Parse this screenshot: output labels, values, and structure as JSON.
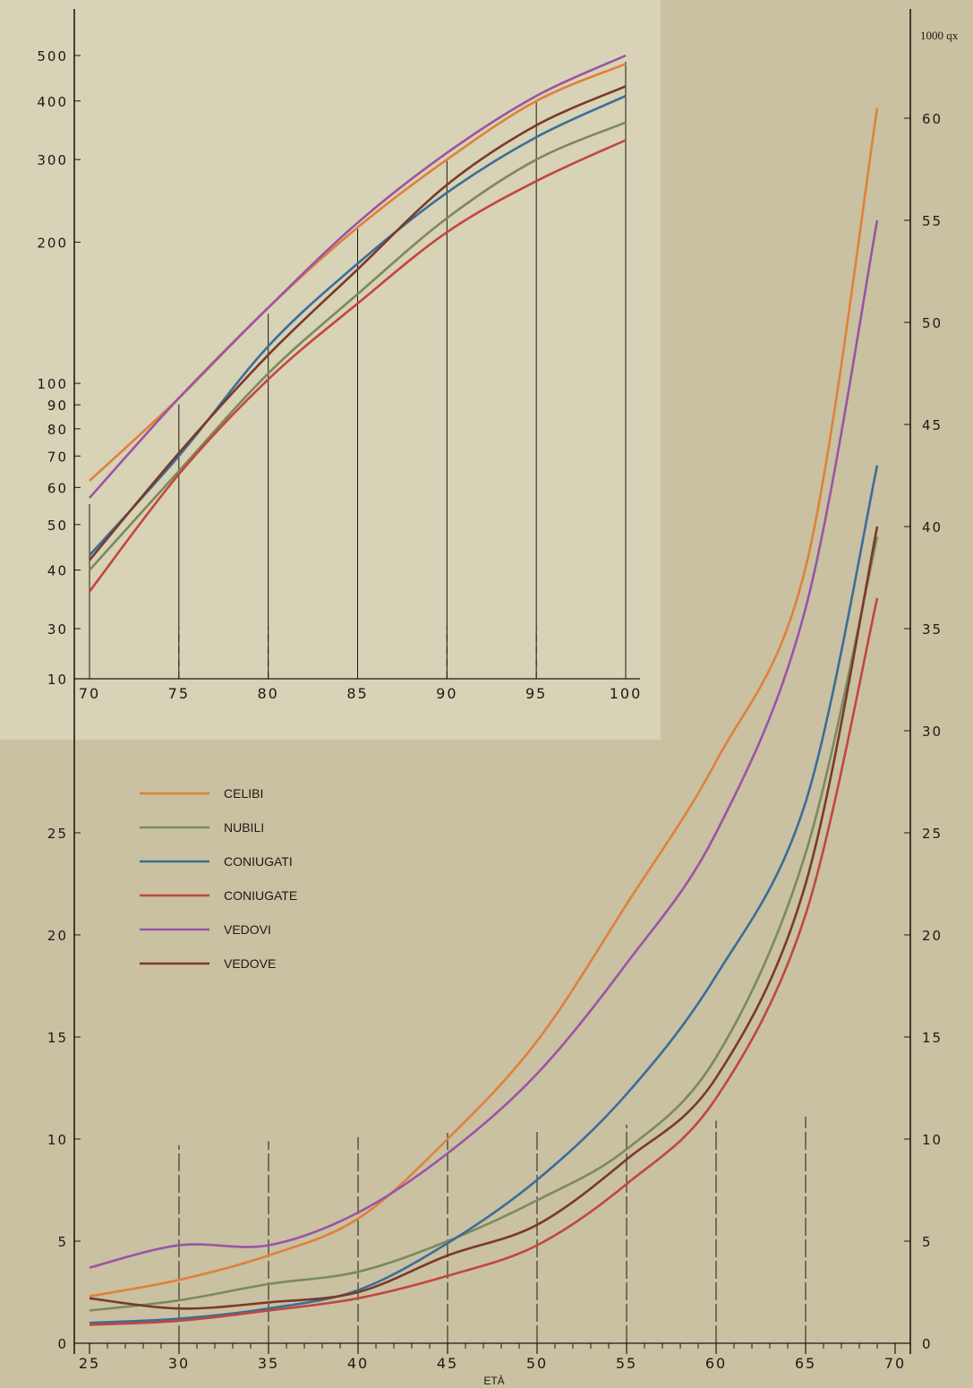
{
  "chart_data": [
    {
      "type": "line",
      "panel": "main",
      "xlabel": "ETÀ",
      "ylabel": "1000 qx",
      "x_ticks": [
        "25",
        "30",
        "35",
        "40",
        "45",
        "50",
        "55",
        "60",
        "65",
        "70"
      ],
      "y_ticks_left": [
        "0",
        "5",
        "10",
        "15",
        "20",
        "25"
      ],
      "y_ticks_right": [
        "0",
        "5",
        "10",
        "15",
        "20",
        "25",
        "30",
        "35",
        "40",
        "45",
        "50",
        "55",
        "60"
      ],
      "xlim": [
        25,
        70
      ],
      "ylim": [
        0,
        65
      ],
      "grid": "vertical dashed at every 5 years",
      "legend_position": "upper-left",
      "x": [
        25,
        30,
        35,
        40,
        45,
        50,
        55,
        60,
        65,
        69
      ],
      "series": [
        {
          "name": "CELIBI",
          "color": "#e0813a",
          "values": [
            2.3,
            3.1,
            4.3,
            6.1,
            10.0,
            14.8,
            21.5,
            28.5,
            38.0,
            60.5
          ]
        },
        {
          "name": "NUBILI",
          "color": "#7b8a5c",
          "values": [
            1.6,
            2.1,
            2.9,
            3.5,
            5.0,
            7.0,
            9.5,
            14.0,
            24.0,
            39.5
          ]
        },
        {
          "name": "CONIUGATI",
          "color": "#3a6e99",
          "values": [
            1.0,
            1.2,
            1.7,
            2.6,
            4.9,
            8.0,
            12.2,
            18.0,
            26.5,
            43.0
          ]
        },
        {
          "name": "CONIUGATE",
          "color": "#c2473d",
          "values": [
            0.9,
            1.1,
            1.6,
            2.2,
            3.3,
            4.8,
            7.8,
            12.0,
            21.0,
            36.5
          ]
        },
        {
          "name": "VEDOVI",
          "color": "#9a54a6",
          "values": [
            3.7,
            4.8,
            4.8,
            6.4,
            9.3,
            13.2,
            18.6,
            25.0,
            36.0,
            55.0
          ]
        },
        {
          "name": "VEDOVE",
          "color": "#7a3a28",
          "values": [
            2.2,
            1.7,
            2.0,
            2.5,
            4.3,
            5.8,
            9.0,
            13.0,
            22.5,
            40.0
          ]
        }
      ]
    },
    {
      "type": "line",
      "panel": "inset",
      "scale": "log",
      "x_ticks": [
        "70",
        "75",
        "80",
        "85",
        "90",
        "95",
        "100"
      ],
      "y_ticks": [
        "10",
        "30",
        "40",
        "50",
        "60",
        "70",
        "80",
        "90",
        "100",
        "200",
        "300",
        "400",
        "500"
      ],
      "xlim": [
        70,
        100
      ],
      "x": [
        70,
        75,
        80,
        85,
        90,
        95,
        100
      ],
      "series": [
        {
          "name": "CELIBI",
          "color": "#e0813a",
          "values": [
            62,
            93,
            145,
            215,
            300,
            400,
            480
          ]
        },
        {
          "name": "NUBILI",
          "color": "#7b8a5c",
          "values": [
            40,
            65,
            105,
            155,
            225,
            300,
            360
          ]
        },
        {
          "name": "CONIUGATI",
          "color": "#3a6e99",
          "values": [
            43,
            70,
            120,
            180,
            255,
            335,
            410
          ]
        },
        {
          "name": "CONIUGATE",
          "color": "#c2473d",
          "values": [
            36,
            64,
            102,
            148,
            210,
            270,
            330
          ]
        },
        {
          "name": "VEDOVI",
          "color": "#9a54a6",
          "values": [
            57,
            93,
            145,
            220,
            310,
            410,
            500
          ]
        },
        {
          "name": "VEDOVE",
          "color": "#7a3a28",
          "values": [
            42,
            71,
            115,
            175,
            265,
            355,
            430
          ]
        }
      ]
    }
  ]
}
